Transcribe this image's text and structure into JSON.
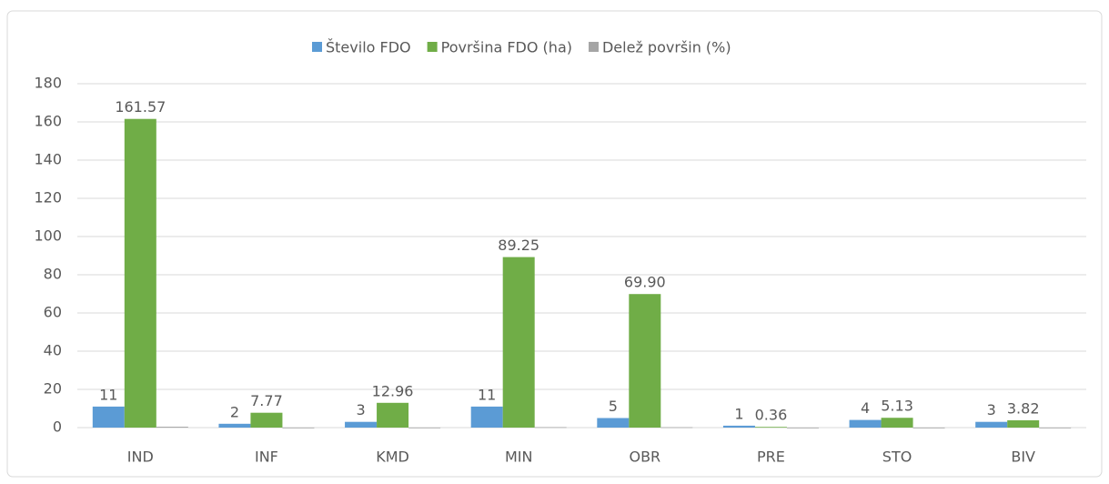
{
  "chart_data": {
    "type": "bar",
    "categories": [
      "IND",
      "INF",
      "KMD",
      "MIN",
      "OBR",
      "PRE",
      "STO",
      "BIV"
    ],
    "series": [
      {
        "name": "Število FDO",
        "color": "#5b9bd5",
        "values": [
          11,
          2,
          3,
          11,
          5,
          1,
          4,
          3
        ]
      },
      {
        "name": "Površina FDO (ha)",
        "color": "#70ad47",
        "values": [
          161.57,
          7.77,
          12.96,
          89.25,
          69.9,
          0.36,
          5.13,
          3.82
        ],
        "value_labels": [
          "161.57",
          "7.77",
          "12.96",
          "89.25",
          "69.90",
          "0.36",
          "5.13",
          "3.82"
        ]
      },
      {
        "name": "Delež površin (%)",
        "color": "#a5a5a5",
        "values": [
          0.46,
          0.02,
          0.04,
          0.25,
          0.2,
          0.001,
          0.01,
          0.01
        ]
      }
    ],
    "ylim": [
      0,
      180
    ],
    "yticks": [
      0,
      20,
      40,
      60,
      80,
      100,
      120,
      140,
      160,
      180
    ],
    "grid": true,
    "legend": "top"
  }
}
